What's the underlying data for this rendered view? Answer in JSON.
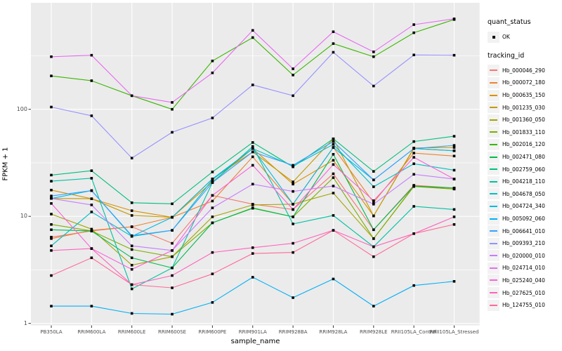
{
  "colors": {
    "panel_bg": "#EBEBEB",
    "grid_major": "#FFFFFF",
    "grid_minor": "#FFFFFF",
    "axis_text": "#4D4D4D",
    "tick_mark": "#333333",
    "legend_key_bg": "#F2F2F2",
    "point": "#000000"
  },
  "legend": {
    "quant_status": {
      "title": "quant_status",
      "items": [
        {
          "label": "OK"
        }
      ]
    },
    "tracking_id": {
      "title": "tracking_id"
    }
  },
  "chart_data": {
    "type": "line",
    "title": "",
    "xlabel": "sample_name",
    "ylabel": "FPKM + 1",
    "y_scale": "log10",
    "y_ticks": [
      "1",
      "10",
      "100"
    ],
    "y_tick_values": [
      1,
      10,
      100
    ],
    "y_minor_values": [
      3.162,
      31.62,
      316.2
    ],
    "ylim": [
      0.97,
      990
    ],
    "grid": true,
    "legend_position": "right",
    "point_shape": "filled-square",
    "categories": [
      "PB350LA",
      "RRIM600LA",
      "RRIM600LE",
      "RRIM600SE",
      "RRIM600PE",
      "RRIM901LA",
      "RRIM928BA",
      "RRIM928LA",
      "RRIM928LE",
      "RRII105LA_Control",
      "RRII105LA_Stressed"
    ],
    "series": [
      {
        "name": "Hb_000046_290",
        "color": "#F8766D",
        "values": [
          6.4,
          7.3,
          8.0,
          5.6,
          15.7,
          13.0,
          11.6,
          25.0,
          7.5,
          19.5,
          18.4
        ]
      },
      {
        "name": "Hb_000072_180",
        "color": "#EA8331",
        "values": [
          6.2,
          7.4,
          8.0,
          9.8,
          13.9,
          36.0,
          13.0,
          44.0,
          13.5,
          39.0,
          36.6
        ]
      },
      {
        "name": "Hb_000635_150",
        "color": "#D89000",
        "values": [
          17.6,
          14.6,
          11.3,
          9.8,
          21.0,
          43.0,
          20.0,
          33.4,
          10.1,
          43.0,
          41.0
        ]
      },
      {
        "name": "Hb_001235_030",
        "color": "#C09B00",
        "values": [
          14.7,
          14.6,
          10.2,
          9.8,
          22.4,
          40.0,
          21.0,
          53.0,
          10.1,
          43.5,
          44.0
        ]
      },
      {
        "name": "Hb_001360_050",
        "color": "#A3A500",
        "values": [
          10.5,
          7.6,
          3.5,
          4.2,
          9.9,
          12.8,
          13.0,
          16.5,
          6.2,
          19.2,
          18.0
        ]
      },
      {
        "name": "Hb_001833_110",
        "color": "#7CAE00",
        "values": [
          8.4,
          7.3,
          4.9,
          4.2,
          8.7,
          12.0,
          9.9,
          23.0,
          6.2,
          19.0,
          18.0
        ]
      },
      {
        "name": "Hb_002016_120",
        "color": "#39B600",
        "values": [
          205,
          185,
          134,
          100,
          283,
          468,
          209,
          411,
          310,
          519,
          690
        ]
      },
      {
        "name": "Hb_002471_080",
        "color": "#00BB4E",
        "values": [
          7.5,
          7.3,
          4.1,
          3.3,
          8.7,
          11.9,
          9.9,
          38.0,
          7.5,
          19.2,
          18.4
        ]
      },
      {
        "name": "Hb_002759_060",
        "color": "#00BF7D",
        "values": [
          24.3,
          26.7,
          13.4,
          13.1,
          26.0,
          49.0,
          29.0,
          53.0,
          26.3,
          50.0,
          56.0
        ]
      },
      {
        "name": "Hb_004218_110",
        "color": "#00C1A3",
        "values": [
          21.3,
          22.7,
          2.1,
          3.3,
          20.7,
          45.0,
          8.5,
          10.2,
          5.2,
          12.4,
          11.6
        ]
      },
      {
        "name": "Hb_004678_050",
        "color": "#00BFC4",
        "values": [
          5.3,
          11.0,
          6.5,
          7.4,
          22.0,
          43.0,
          29.5,
          47.0,
          18.9,
          31.0,
          27.0
        ]
      },
      {
        "name": "Hb_004724_340",
        "color": "#00BAE0",
        "values": [
          14.7,
          17.4,
          6.5,
          9.8,
          22.4,
          43.0,
          13.0,
          44.0,
          21.9,
          43.0,
          41.0
        ]
      },
      {
        "name": "Hb_005092_060",
        "color": "#00B0F6",
        "values": [
          1.45,
          1.45,
          1.24,
          1.22,
          1.57,
          2.7,
          1.74,
          2.6,
          1.45,
          2.26,
          2.47
        ]
      },
      {
        "name": "Hb_006641_010",
        "color": "#35A2FF",
        "values": [
          15.5,
          17.4,
          6.6,
          7.4,
          20.7,
          40.0,
          30.0,
          50.0,
          21.9,
          43.0,
          46.0
        ]
      },
      {
        "name": "Hb_009393_210",
        "color": "#9590FF",
        "values": [
          105,
          87,
          35,
          61,
          83,
          169,
          134,
          341,
          165,
          322,
          320
        ]
      },
      {
        "name": "Hb_020000_010",
        "color": "#C77CFF",
        "values": [
          14.7,
          12.8,
          5.3,
          4.8,
          12.0,
          20.0,
          17.1,
          19.2,
          13.0,
          24.7,
          22.3
        ]
      },
      {
        "name": "Hb_024714_010",
        "color": "#E76BF3",
        "values": [
          310,
          320,
          134,
          116,
          219,
          546,
          239,
          530,
          344,
          618,
          700
        ]
      },
      {
        "name": "Hb_025240_040",
        "color": "#FA62DB",
        "values": [
          13.2,
          5.0,
          3.2,
          4.8,
          15.7,
          30.0,
          11.6,
          30.5,
          14.0,
          35.6,
          22.3
        ]
      },
      {
        "name": "Hb_027625_010",
        "color": "#FF62BC",
        "values": [
          4.8,
          5.0,
          2.3,
          2.8,
          4.6,
          5.1,
          5.6,
          7.4,
          5.2,
          6.9,
          9.9
        ]
      },
      {
        "name": "Hb_124755_010",
        "color": "#FF6A98",
        "values": [
          2.8,
          4.1,
          2.3,
          2.15,
          2.9,
          4.5,
          4.6,
          7.4,
          4.2,
          6.9,
          8.4
        ]
      }
    ]
  }
}
